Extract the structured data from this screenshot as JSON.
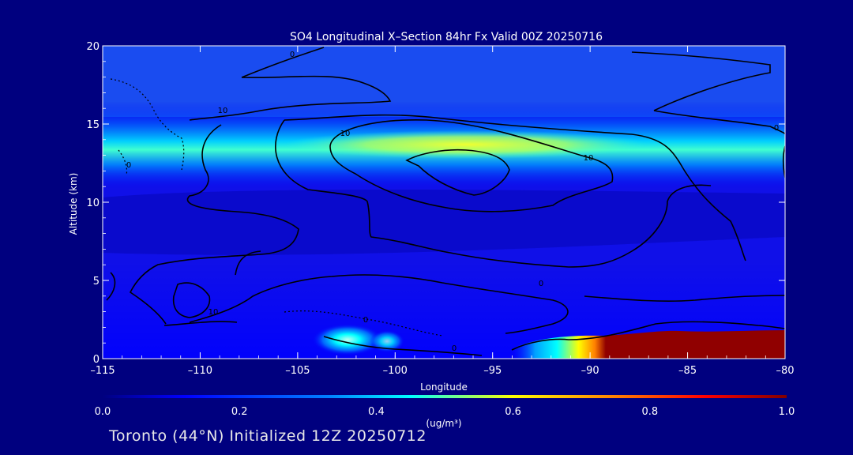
{
  "chart_data": {
    "type": "heatmap",
    "title": "SO4 Longitudinal X–Section 84hr  Fx Valid 00Z 20250716",
    "xlabel": "Longitude",
    "ylabel": "Altitude (km)",
    "xlim": [
      -115,
      -80
    ],
    "ylim": [
      0,
      20
    ],
    "x_ticks": [
      "–115",
      "–110",
      "–105",
      "–100",
      "–95",
      "–90",
      "–85",
      "–80"
    ],
    "x_tick_values": [
      -115,
      -110,
      -105,
      -100,
      -95,
      -90,
      -85,
      -80
    ],
    "y_ticks": [
      "0",
      "5",
      "10",
      "15",
      "20"
    ],
    "y_tick_values": [
      0,
      5,
      10,
      15,
      20
    ],
    "colorbar": {
      "label": "(ug/m³)",
      "ticks": [
        "0.0",
        "0.2",
        "0.4",
        "0.6",
        "0.8",
        "1.0"
      ],
      "tick_values": [
        0.0,
        0.2,
        0.4,
        0.6,
        0.8,
        1.0
      ],
      "range": [
        0.0,
        1.0
      ],
      "colors": [
        "#00007f",
        "#0000ff",
        "#0080ff",
        "#00ffff",
        "#ffff00",
        "#ff8000",
        "#ff0000",
        "#800000"
      ]
    },
    "features": [
      {
        "name": "upper_layer",
        "lon_range": [
          -114,
          -82
        ],
        "alt_center": 13.7,
        "alt_halfwidth": 1.2,
        "peak_lon": -97,
        "peak_value": 0.58
      },
      {
        "name": "surface_plume_east",
        "lon_range": [
          -88.5,
          -80
        ],
        "alt_range": [
          0,
          1.7
        ],
        "value": 1.0
      },
      {
        "name": "surface_plume_west",
        "lon": -103,
        "alt": 1.2,
        "value": 0.45
      }
    ],
    "contour_labels": [
      "0",
      "10",
      "10",
      "10",
      "0",
      "0",
      "0",
      "10",
      "0",
      "0"
    ]
  },
  "footer": {
    "caption": "Toronto (44°N) Initialized 12Z 20250712"
  }
}
